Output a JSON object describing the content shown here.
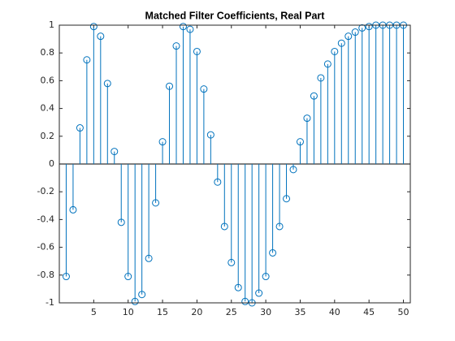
{
  "chart_data": {
    "type": "stem",
    "title": "Matched Filter Coefficients, Real Part",
    "x": [
      1,
      2,
      3,
      4,
      5,
      6,
      7,
      8,
      9,
      10,
      11,
      12,
      13,
      14,
      15,
      16,
      17,
      18,
      19,
      20,
      21,
      22,
      23,
      24,
      25,
      26,
      27,
      28,
      29,
      30,
      31,
      32,
      33,
      34,
      35,
      36,
      37,
      38,
      39,
      40,
      41,
      42,
      43,
      44,
      45,
      46,
      47,
      48,
      49,
      50
    ],
    "values": [
      -0.81,
      -0.33,
      0.26,
      0.75,
      0.99,
      0.92,
      0.58,
      0.09,
      -0.42,
      -0.81,
      -0.99,
      -0.94,
      -0.68,
      -0.28,
      0.16,
      0.56,
      0.85,
      0.99,
      0.97,
      0.81,
      0.54,
      0.21,
      -0.13,
      -0.45,
      -0.71,
      -0.89,
      -0.99,
      -1.0,
      -0.93,
      -0.81,
      -0.64,
      -0.45,
      -0.25,
      -0.04,
      0.16,
      0.33,
      0.49,
      0.62,
      0.72,
      0.81,
      0.87,
      0.92,
      0.95,
      0.98,
      0.99,
      1.0,
      1.0,
      1.0,
      1.0,
      1.0
    ],
    "color": "#0072bd",
    "xlim": [
      0,
      51
    ],
    "xticks": [
      5,
      10,
      15,
      20,
      25,
      30,
      35,
      40,
      45,
      50
    ],
    "ylim": [
      -1,
      1
    ],
    "yticks": [
      -1,
      -0.8,
      -0.6,
      -0.4,
      -0.2,
      0,
      0.2,
      0.4,
      0.6,
      0.8,
      1
    ]
  }
}
